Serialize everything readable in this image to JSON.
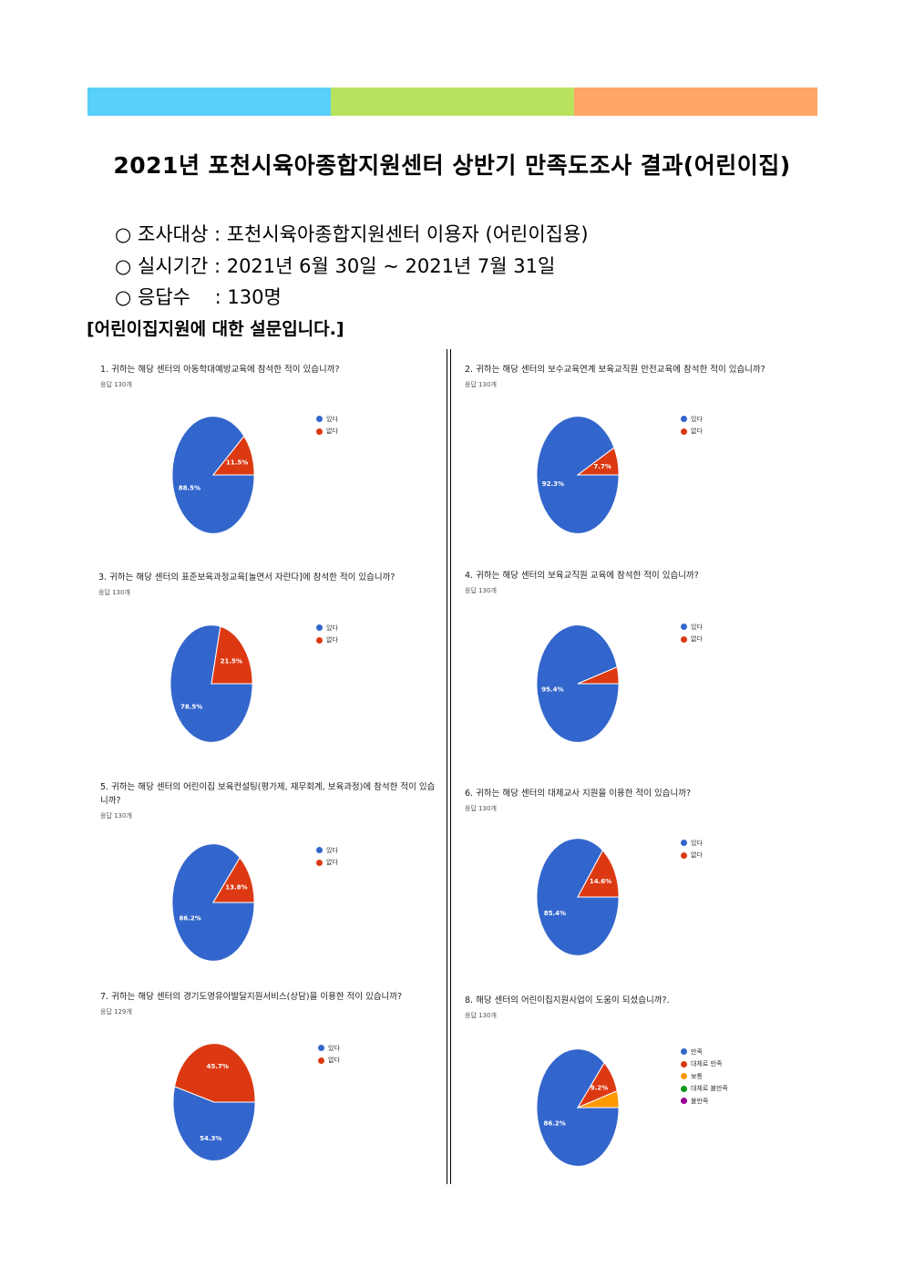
{
  "header": {
    "colors": [
      "#58d0f7",
      "#b8e35e",
      "#ffa566"
    ],
    "title": "2021년 포천시육아종합지원센터 상반기 만족도조사 결과(어린이집)"
  },
  "info": {
    "target": "○ 조사대상 : 포천시육아종합지원센터 이용자 (어린이집용)",
    "period": "○ 실시기간 : 2021년 6월 30일 ~ 2021년 7월 31일",
    "responses": "○ 응답수    : 130명"
  },
  "section_heading": "[어린이집지원에 대한 설문입니다.]",
  "colors": {
    "blue": "#3366cc",
    "red": "#dc3912",
    "orange": "#ff9900",
    "green": "#109618",
    "purple": "#990099"
  },
  "chart_data": [
    {
      "type": "pie",
      "title": "1. 귀하는 해당 센터의 아동학대예방교육에 참석한 적이 있습니까?",
      "subtitle": "응답 130개",
      "legend": [
        "있다",
        "없다"
      ],
      "values": [
        88.5,
        11.5
      ],
      "labels": [
        "88.5%",
        "11.5%"
      ]
    },
    {
      "type": "pie",
      "title": "2. 귀하는 해당 센터의 보수교육연계 보육교직원 안전교육에 참석한 적이 있습니까?",
      "subtitle": "응답 130개",
      "legend": [
        "있다",
        "없다"
      ],
      "values": [
        92.3,
        7.7
      ],
      "labels": [
        "92.3%",
        "7.7%"
      ]
    },
    {
      "type": "pie",
      "title": "3. 귀하는 해당 센터의 표준보육과정교육[놀면서 자란다]에 참석한 적이 있습니까?",
      "subtitle": "응답 130개",
      "legend": [
        "있다",
        "없다"
      ],
      "values": [
        78.5,
        21.5
      ],
      "labels": [
        "78.5%",
        "21.5%"
      ]
    },
    {
      "type": "pie",
      "title": "4. 귀하는 해당 센터의 보육교직원 교육에 참석한 적이 있습니까?",
      "subtitle": "응답 130개",
      "legend": [
        "있다",
        "없다"
      ],
      "values": [
        95.4,
        4.6
      ],
      "labels": [
        "95.4%",
        ""
      ]
    },
    {
      "type": "pie",
      "title": "5. 귀하는 해당 센터의 어린이집 보육컨설팅(평가제, 재무회계, 보육과정)에 참석한 적이 있습니까?",
      "subtitle": "응답 130개",
      "legend": [
        "있다",
        "없다"
      ],
      "values": [
        86.2,
        13.8
      ],
      "labels": [
        "86.2%",
        "13.8%"
      ]
    },
    {
      "type": "pie",
      "title": "6. 귀하는 해당 센터의 대체교사 지원을 이용한 적이 있습니까?",
      "subtitle": "응답 130개",
      "legend": [
        "있다",
        "없다"
      ],
      "values": [
        85.4,
        14.6
      ],
      "labels": [
        "85.4%",
        "14.6%"
      ]
    },
    {
      "type": "pie",
      "title": "7. 귀하는 해당 센터의 경기도영유아발달지원서비스(상담)을 이용한 적이 있습니까?",
      "subtitle": "응답 129개",
      "legend": [
        "있다",
        "없다"
      ],
      "values": [
        54.3,
        45.7
      ],
      "labels": [
        "54.3%",
        "45.7%"
      ]
    },
    {
      "type": "pie",
      "title": "8. 해당 센터의 어린이집지원사업이 도움이 되셨습니까?.",
      "subtitle": "응답 130개",
      "legend": [
        "만족",
        "대체로 만족",
        "보통",
        "대체로 불만족",
        "불만족"
      ],
      "values": [
        86.2,
        9.2,
        4.6,
        0,
        0
      ],
      "labels": [
        "86.2%",
        "9.2%",
        "",
        "",
        ""
      ]
    }
  ]
}
